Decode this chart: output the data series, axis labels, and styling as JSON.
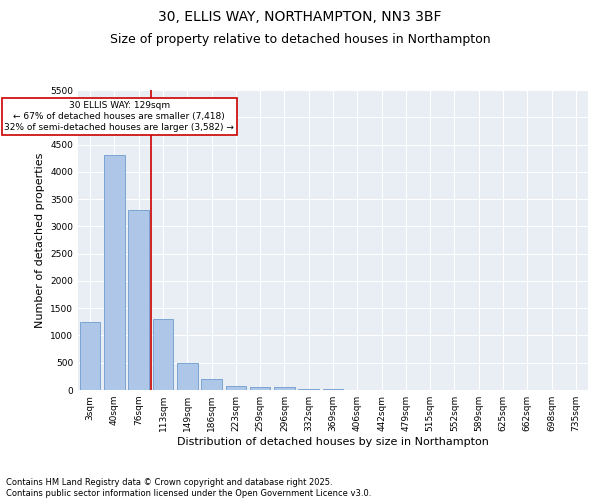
{
  "title_line1": "30, ELLIS WAY, NORTHAMPTON, NN3 3BF",
  "title_line2": "Size of property relative to detached houses in Northampton",
  "xlabel": "Distribution of detached houses by size in Northampton",
  "ylabel": "Number of detached properties",
  "categories": [
    "3sqm",
    "40sqm",
    "76sqm",
    "113sqm",
    "149sqm",
    "186sqm",
    "223sqm",
    "259sqm",
    "296sqm",
    "332sqm",
    "369sqm",
    "406sqm",
    "442sqm",
    "479sqm",
    "515sqm",
    "552sqm",
    "589sqm",
    "625sqm",
    "662sqm",
    "698sqm",
    "735sqm"
  ],
  "values": [
    1250,
    4300,
    3300,
    1300,
    500,
    200,
    80,
    50,
    50,
    20,
    10,
    0,
    0,
    0,
    0,
    0,
    0,
    0,
    0,
    0,
    0
  ],
  "bar_color": "#aec6e8",
  "bar_edge_color": "#5b8fc9",
  "background_color": "#e8eef4",
  "grid_color": "#ffffff",
  "vline_index": 2.5,
  "vline_color": "#cc0000",
  "annotation_text": "30 ELLIS WAY: 129sqm\n← 67% of detached houses are smaller (7,418)\n32% of semi-detached houses are larger (3,582) →",
  "annotation_box_color": "#cc0000",
  "ylim": [
    0,
    5500
  ],
  "yticks": [
    0,
    500,
    1000,
    1500,
    2000,
    2500,
    3000,
    3500,
    4000,
    4500,
    5000,
    5500
  ],
  "footer_line1": "Contains HM Land Registry data © Crown copyright and database right 2025.",
  "footer_line2": "Contains public sector information licensed under the Open Government Licence v3.0.",
  "title_fontsize": 10,
  "subtitle_fontsize": 9,
  "axis_label_fontsize": 8,
  "tick_fontsize": 6.5,
  "footer_fontsize": 6
}
